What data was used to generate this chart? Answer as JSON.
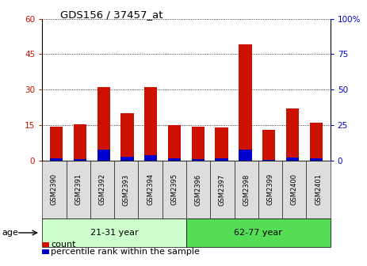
{
  "title": "GDS156 / 37457_at",
  "samples": [
    "GSM2390",
    "GSM2391",
    "GSM2392",
    "GSM2393",
    "GSM2394",
    "GSM2395",
    "GSM2396",
    "GSM2397",
    "GSM2398",
    "GSM2399",
    "GSM2400",
    "GSM2401"
  ],
  "count": [
    14.5,
    15.5,
    31,
    20,
    31,
    15,
    14.5,
    14,
    49,
    13,
    22,
    16
  ],
  "percentile": [
    2,
    1,
    8,
    3,
    4,
    2,
    1.5,
    2,
    8,
    0.5,
    2.5,
    2
  ],
  "group1_n": 6,
  "group2_n": 6,
  "group1_label": "21-31 year",
  "group2_label": "62-77 year",
  "age_label": "age",
  "legend1": "count",
  "legend2": "percentile rank within the sample",
  "bar_color_red": "#cc1100",
  "bar_color_blue": "#0000cc",
  "group1_bg": "#ccffcc",
  "group2_bg": "#55dd55",
  "tick_bg": "#dddddd",
  "ylim_left": [
    0,
    60
  ],
  "ylim_right": [
    0,
    100
  ],
  "yticks_left": [
    0,
    15,
    30,
    45,
    60
  ],
  "yticks_right": [
    0,
    25,
    50,
    75,
    100
  ]
}
